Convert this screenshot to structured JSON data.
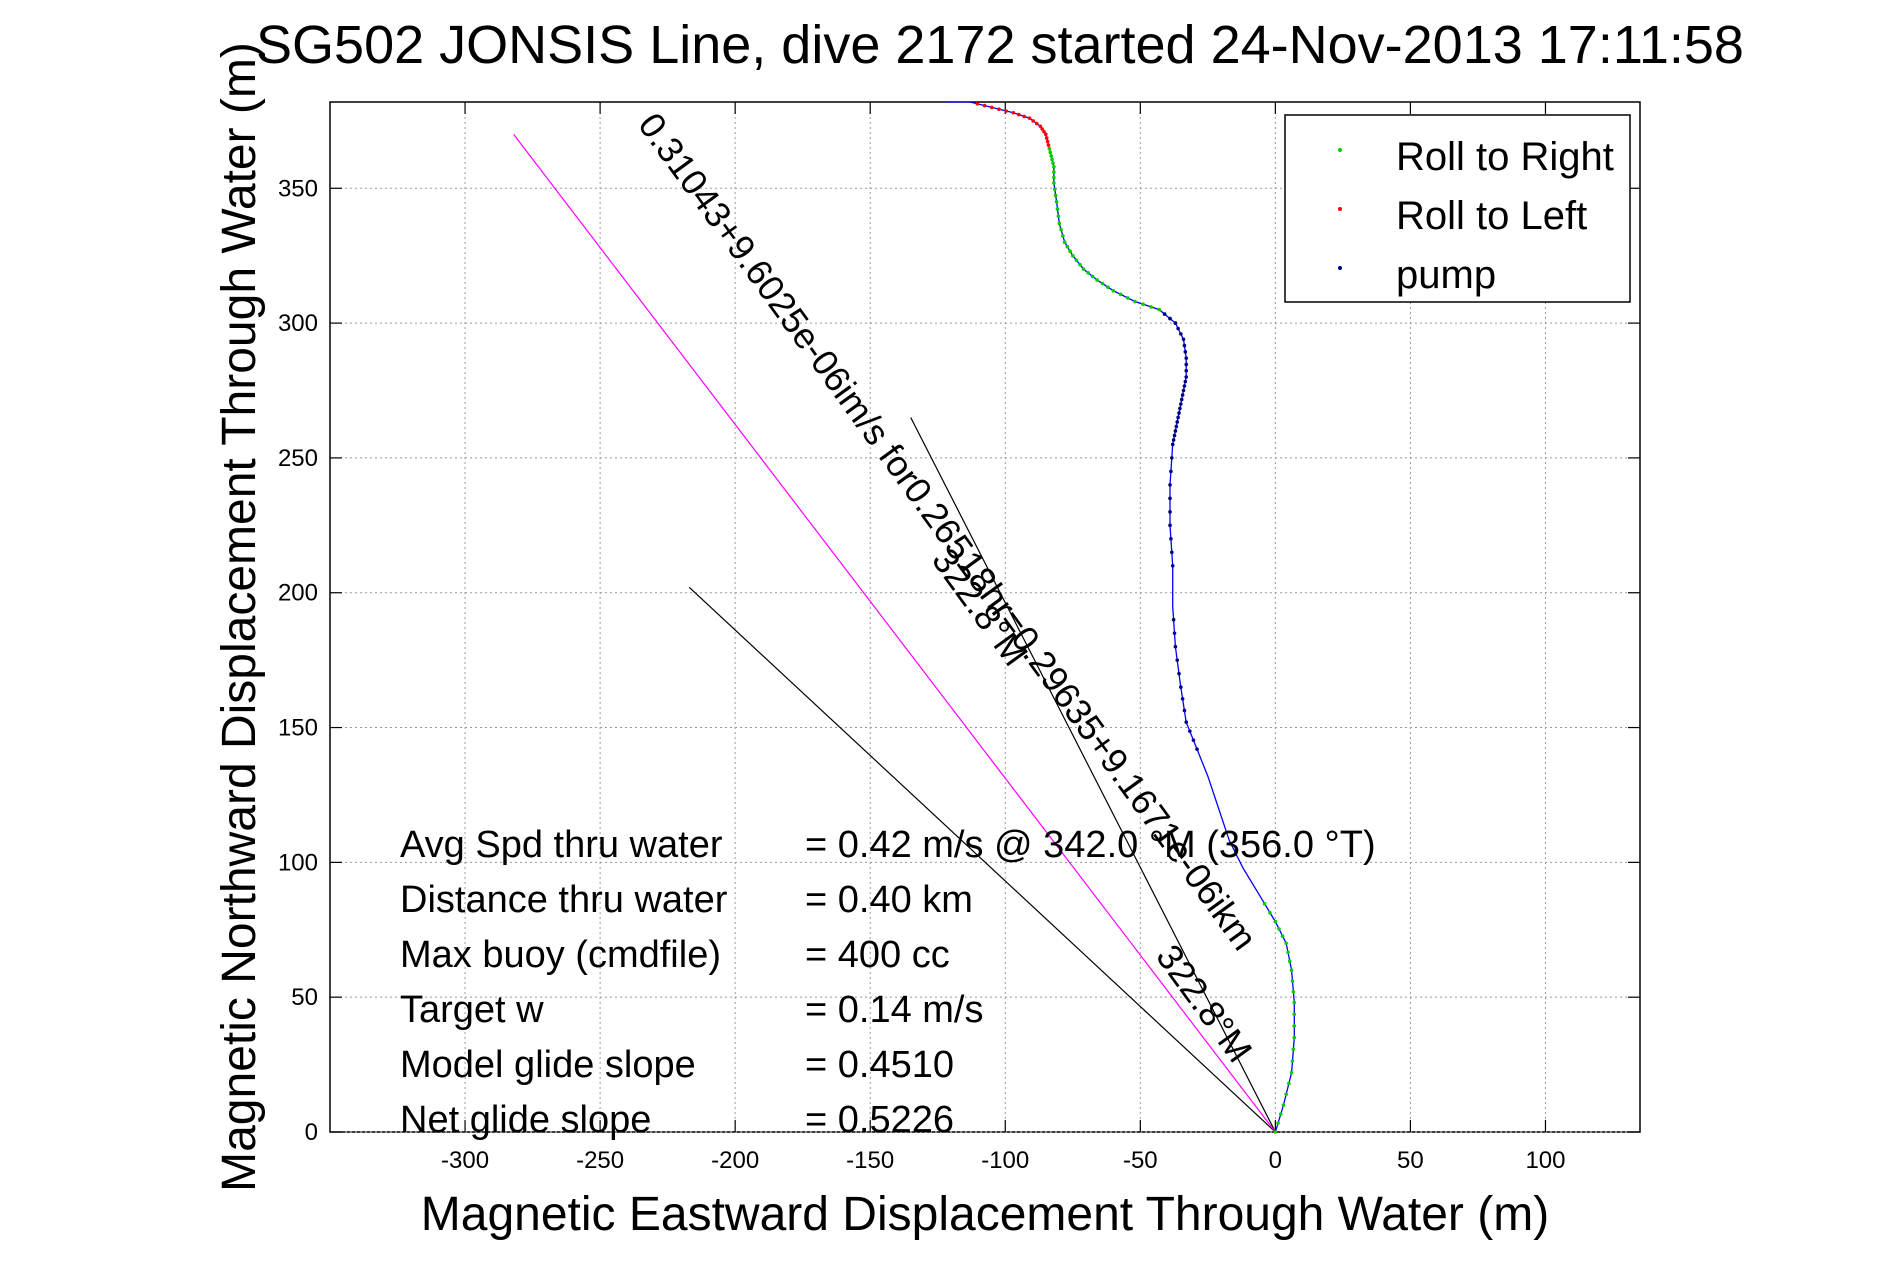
{
  "chart_data": {
    "type": "scatter",
    "title": "SG502 JONSIS Line, dive 2172 started 24-Nov-2013 17:11:58",
    "xlabel": "Magnetic Eastward Displacement Through Water (m)",
    "ylabel": "Magnetic Northward Displacement Through Water (m)",
    "xlim": [
      -350,
      135
    ],
    "ylim": [
      0,
      382
    ],
    "xticks": [
      -300,
      -250,
      -200,
      -150,
      -100,
      -50,
      0,
      50,
      100
    ],
    "yticks": [
      0,
      50,
      100,
      150,
      200,
      250,
      300,
      350
    ],
    "grid": true,
    "legend_position": "top-right",
    "legend": [
      {
        "label": "Roll to Right",
        "color": "#00cc00"
      },
      {
        "label": "Roll to Left",
        "color": "#ff0000"
      },
      {
        "label": "pump",
        "color": "#000080"
      }
    ],
    "track": {
      "color": "#0000ff",
      "x": [
        0,
        3,
        6,
        7,
        7,
        6,
        4,
        0,
        -6,
        -12,
        -17,
        -21,
        -25,
        -29,
        -33,
        -35,
        -37,
        -38,
        -38,
        -39,
        -39,
        -38,
        -37,
        -36,
        -35,
        -34,
        -33,
        -33,
        -34,
        -37,
        -43,
        -52,
        -60,
        -66,
        -71,
        -75,
        -78,
        -80,
        -81,
        -82,
        -82,
        -83,
        -84,
        -85,
        -87,
        -91,
        -97,
        -105,
        -113,
        -122
      ],
      "y": [
        0,
        10,
        22,
        35,
        48,
        60,
        70,
        78,
        88,
        98,
        108,
        120,
        132,
        142,
        152,
        165,
        180,
        195,
        210,
        225,
        240,
        255,
        260,
        265,
        270,
        275,
        280,
        287,
        294,
        300,
        305,
        308,
        312,
        316,
        320,
        325,
        330,
        337,
        345,
        352,
        358,
        362,
        366,
        370,
        373,
        376,
        378,
        380,
        382,
        382
      ]
    },
    "roll_right_segments": [
      [
        0,
        8
      ],
      [
        29,
        42
      ]
    ],
    "roll_left_segments": [
      [
        42,
        48
      ]
    ],
    "pump_segments": [
      [
        13,
        17
      ],
      [
        18,
        30
      ]
    ],
    "heading_lines": [
      {
        "color": "#000000",
        "x": [
          0,
          -135
        ],
        "y": [
          0,
          265
        ]
      },
      {
        "color": "#000000",
        "x": [
          0,
          -217
        ],
        "y": [
          0,
          202
        ]
      },
      {
        "color": "#ff00ff",
        "x": [
          0,
          -282
        ],
        "y": [
          0,
          370
        ]
      }
    ],
    "rotated_annotations": [
      {
        "text": "0.31043+9.6025e-06im/s for0.26518hr=0.29635+9.1671e-06ikm",
        "angle": 54
      },
      {
        "text": "322.8°M",
        "angle": 54
      },
      {
        "text": "322.8°M",
        "angle": 54
      }
    ],
    "stats": [
      {
        "label": "Avg Spd thru water",
        "value": "=  0.42 m/s @ 342.0 °M (356.0 °T)"
      },
      {
        "label": "Distance thru water",
        "value": "=  0.40 km"
      },
      {
        "label": "Max buoy (cmdfile)",
        "value": "= 400 cc"
      },
      {
        "label": "Target w",
        "value": "= 0.14 m/s"
      },
      {
        "label": "Model glide slope",
        "value": "= 0.4510"
      },
      {
        "label": "Net glide slope",
        "value": "= 0.5226"
      }
    ]
  }
}
